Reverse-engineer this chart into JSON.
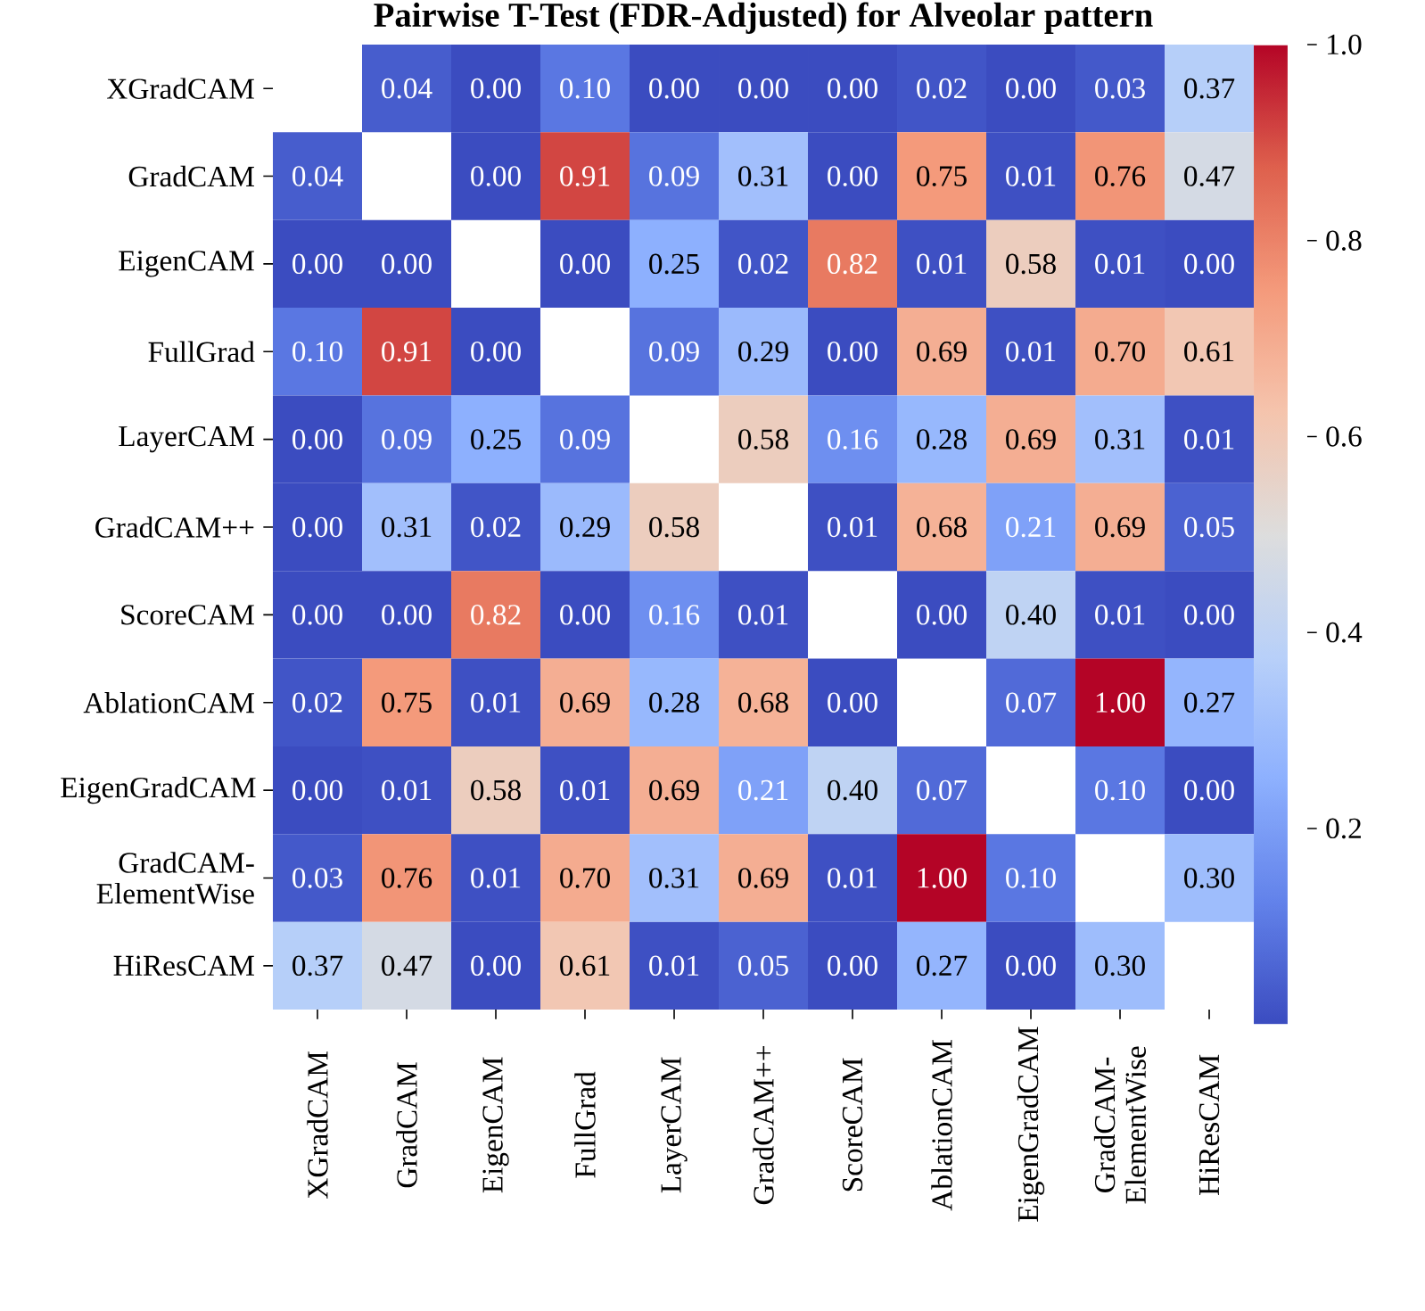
{
  "chart_data": {
    "type": "heatmap",
    "title": "Pairwise T-Test (FDR-Adjusted) for Alveolar pattern",
    "categories": [
      "XGradCAM",
      "GradCAM",
      "EigenCAM",
      "FullGrad",
      "LayerCAM",
      "GradCAM++",
      "ScoreCAM",
      "AblationCAM",
      "EigenGradCAM",
      "GradCAM-ElementWise",
      "HiResCAM"
    ],
    "y_categories": [
      "XGradCAM",
      "GradCAM",
      "EigenCAM",
      "FullGrad",
      "LayerCAM",
      "GradCAM++",
      "ScoreCAM",
      "AblationCAM",
      "EigenGradCAM",
      "GradCAM-ElementWise",
      "HiResCAM"
    ],
    "cells": [
      [
        null,
        0.04,
        0.0,
        0.1,
        0.0,
        0.0,
        0.0,
        0.02,
        0.0,
        0.03,
        0.37
      ],
      [
        0.04,
        null,
        0.0,
        0.91,
        0.09,
        0.31,
        0.0,
        0.75,
        0.01,
        0.76,
        0.47
      ],
      [
        0.0,
        0.0,
        null,
        0.0,
        0.25,
        0.02,
        0.82,
        0.01,
        0.58,
        0.01,
        0.0
      ],
      [
        0.1,
        0.91,
        0.0,
        null,
        0.09,
        0.29,
        0.0,
        0.69,
        0.01,
        0.7,
        0.61
      ],
      [
        0.0,
        0.09,
        0.25,
        0.09,
        null,
        0.58,
        0.16,
        0.28,
        0.69,
        0.31,
        0.01
      ],
      [
        0.0,
        0.31,
        0.02,
        0.29,
        0.58,
        null,
        0.01,
        0.68,
        0.21,
        0.69,
        0.05
      ],
      [
        0.0,
        0.0,
        0.82,
        0.0,
        0.16,
        0.01,
        null,
        0.0,
        0.4,
        0.01,
        0.0
      ],
      [
        0.02,
        0.75,
        0.01,
        0.69,
        0.28,
        0.68,
        0.0,
        null,
        0.07,
        1.0,
        0.27
      ],
      [
        0.0,
        0.01,
        0.58,
        0.01,
        0.69,
        0.21,
        0.4,
        0.07,
        null,
        0.1,
        0.0
      ],
      [
        0.03,
        0.76,
        0.01,
        0.7,
        0.31,
        0.69,
        0.01,
        1.0,
        0.1,
        null,
        0.3
      ],
      [
        0.37,
        0.47,
        0.0,
        0.61,
        0.01,
        0.05,
        0.0,
        0.27,
        0.0,
        0.3,
        null
      ]
    ],
    "cell_labels": [
      [
        null,
        "0.04",
        "0.00",
        "0.10",
        "0.00",
        "0.00",
        "0.00",
        "0.02",
        "0.00",
        "0.03",
        "0.37"
      ],
      [
        "0.04",
        null,
        "0.00",
        "0.91",
        "0.09",
        "0.31",
        "0.00",
        "0.75",
        "0.01",
        "0.76",
        "0.47"
      ],
      [
        "0.00",
        "0.00",
        null,
        "0.00",
        "0.25",
        "0.02",
        "0.82",
        "0.01",
        "0.58",
        "0.01",
        "0.00"
      ],
      [
        "0.10",
        "0.91",
        "0.00",
        null,
        "0.09",
        "0.29",
        "0.00",
        "0.69",
        "0.01",
        "0.70",
        "0.61"
      ],
      [
        "0.00",
        "0.09",
        "0.25",
        "0.09",
        null,
        "0.58",
        "0.16",
        "0.28",
        "0.69",
        "0.31",
        "0.01"
      ],
      [
        "0.00",
        "0.31",
        "0.02",
        "0.29",
        "0.58",
        null,
        "0.01",
        "0.68",
        "0.21",
        "0.69",
        "0.05"
      ],
      [
        "0.00",
        "0.00",
        "0.82",
        "0.00",
        "0.16",
        "0.01",
        null,
        "0.00",
        "0.40",
        "0.01",
        "0.00"
      ],
      [
        "0.02",
        "0.75",
        "0.01",
        "0.69",
        "0.28",
        "0.68",
        "0.00",
        null,
        "0.07",
        "1.00",
        "0.27"
      ],
      [
        "0.00",
        "0.01",
        "0.58",
        "0.01",
        "0.69",
        "0.21",
        "0.40",
        "0.07",
        null,
        "0.10",
        "0.00"
      ],
      [
        "0.03",
        "0.76",
        "0.01",
        "0.70",
        "0.31",
        "0.69",
        "0.01",
        "1.00",
        "0.10",
        null,
        "0.30"
      ],
      [
        "0.37",
        "0.47",
        "0.00",
        "0.61",
        "0.01",
        "0.05",
        "0.00",
        "0.27",
        "0.00",
        "0.30",
        null
      ]
    ],
    "clim": [
      0,
      1
    ],
    "cticks": [
      0.2,
      0.4,
      0.6,
      0.8,
      {
        "value": 1.0,
        "label": "1.0"
      }
    ]
  }
}
